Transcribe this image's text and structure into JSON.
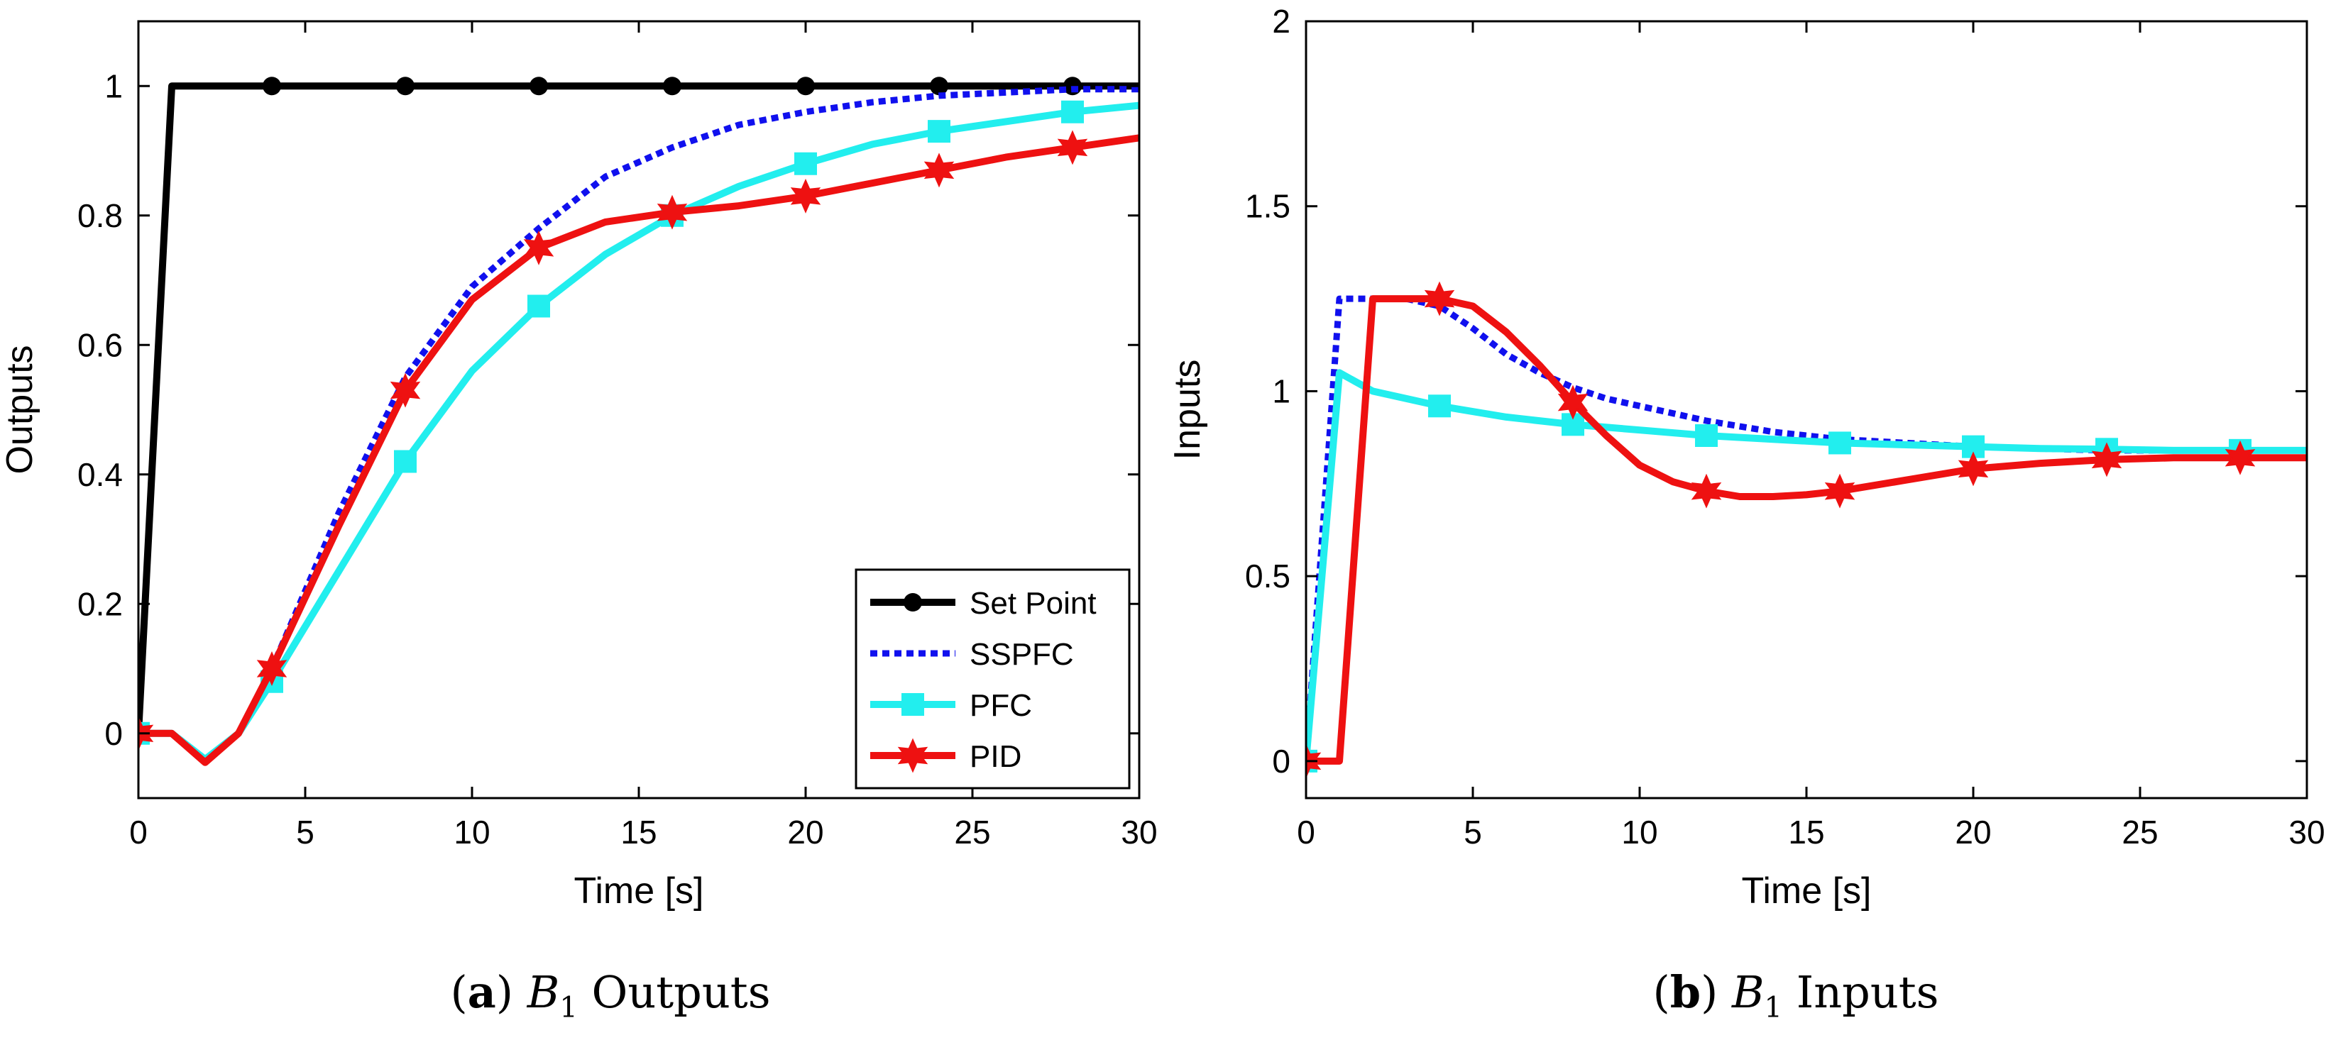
{
  "figure": {
    "captions": [
      {
        "label": "a",
        "symbol": "B",
        "subscript": "1",
        "text": "Outputs"
      },
      {
        "label": "b",
        "symbol": "B",
        "subscript": "1",
        "text": "Inputs"
      }
    ]
  },
  "chart_data": [
    {
      "type": "line",
      "xlabel": "Time [s]",
      "ylabel": "Outputs",
      "xlim": [
        0,
        30
      ],
      "ylim": [
        -0.1,
        1.1
      ],
      "xticks": [
        0,
        5,
        10,
        15,
        20,
        25,
        30
      ],
      "yticks": [
        0,
        0.2,
        0.4,
        0.6,
        0.8,
        1
      ],
      "ytick_labels": [
        "0",
        "0.2",
        "0.4",
        "0.6",
        "0.8",
        "1"
      ],
      "grid": false,
      "legend_position": "bottom-right",
      "series": [
        {
          "name": "Set Point",
          "color": "#000000",
          "style": "solid",
          "marker": "circle",
          "x": [
            0,
            1,
            4,
            8,
            12,
            16,
            20,
            24,
            28,
            30
          ],
          "y": [
            0,
            1,
            1,
            1,
            1,
            1,
            1,
            1,
            1,
            1
          ],
          "marker_x": [
            4,
            8,
            12,
            16,
            20,
            24,
            28
          ]
        },
        {
          "name": "SSPFC",
          "color": "#1010ee",
          "style": "dotted",
          "marker": "none",
          "x": [
            0,
            1,
            2,
            3,
            4,
            6,
            8,
            10,
            12,
            14,
            16,
            18,
            20,
            22,
            24,
            26,
            28,
            30
          ],
          "y": [
            0,
            0,
            -0.045,
            0.0,
            0.1,
            0.34,
            0.55,
            0.69,
            0.78,
            0.86,
            0.905,
            0.94,
            0.96,
            0.975,
            0.985,
            0.99,
            0.995,
            0.995
          ]
        },
        {
          "name": "PFC",
          "color": "#22eeee",
          "style": "solid",
          "marker": "square",
          "x": [
            0,
            1,
            2,
            3,
            4,
            6,
            8,
            10,
            12,
            14,
            16,
            18,
            20,
            22,
            24,
            26,
            28,
            30
          ],
          "y": [
            0,
            0,
            -0.04,
            0.0,
            0.08,
            0.25,
            0.42,
            0.56,
            0.66,
            0.74,
            0.8,
            0.845,
            0.88,
            0.91,
            0.93,
            0.945,
            0.96,
            0.97
          ],
          "marker_x": [
            0,
            4,
            8,
            12,
            16,
            20,
            24,
            28
          ]
        },
        {
          "name": "PID",
          "color": "#ee1111",
          "style": "solid",
          "marker": "star",
          "x": [
            0,
            1,
            2,
            3,
            4,
            6,
            8,
            10,
            12,
            14,
            16,
            18,
            20,
            22,
            24,
            26,
            28,
            30
          ],
          "y": [
            0,
            0,
            -0.045,
            0.0,
            0.1,
            0.32,
            0.53,
            0.67,
            0.75,
            0.79,
            0.805,
            0.815,
            0.83,
            0.85,
            0.87,
            0.89,
            0.905,
            0.92
          ],
          "marker_x": [
            0,
            4,
            8,
            12,
            16,
            20,
            24,
            28
          ]
        }
      ]
    },
    {
      "type": "line",
      "xlabel": "Time [s]",
      "ylabel": "Inputs",
      "xlim": [
        0,
        30
      ],
      "ylim": [
        -0.1,
        2
      ],
      "xticks": [
        0,
        5,
        10,
        15,
        20,
        25,
        30
      ],
      "yticks": [
        0,
        0.5,
        1,
        1.5,
        2
      ],
      "ytick_labels": [
        "0",
        "0.5",
        "1",
        "1.5",
        "2"
      ],
      "grid": false,
      "series": [
        {
          "name": "SSPFC",
          "color": "#1010ee",
          "style": "dotted",
          "marker": "none",
          "x": [
            0,
            1,
            2,
            3,
            4,
            5,
            6,
            7,
            8,
            9,
            10,
            12,
            14,
            16,
            18,
            20,
            22,
            24,
            26,
            28,
            30
          ],
          "y": [
            0,
            1.25,
            1.25,
            1.25,
            1.23,
            1.17,
            1.1,
            1.05,
            1.01,
            0.98,
            0.96,
            0.92,
            0.89,
            0.87,
            0.86,
            0.85,
            0.845,
            0.84,
            0.84,
            0.84,
            0.84
          ]
        },
        {
          "name": "PFC",
          "color": "#22eeee",
          "style": "solid",
          "marker": "square",
          "x": [
            0,
            1,
            2,
            4,
            6,
            8,
            10,
            12,
            14,
            16,
            18,
            20,
            22,
            24,
            26,
            28,
            30
          ],
          "y": [
            0,
            1.05,
            1.0,
            0.96,
            0.93,
            0.91,
            0.895,
            0.88,
            0.87,
            0.86,
            0.855,
            0.85,
            0.845,
            0.843,
            0.84,
            0.84,
            0.84
          ],
          "marker_x": [
            0,
            4,
            8,
            12,
            16,
            20,
            24,
            28
          ]
        },
        {
          "name": "PID",
          "color": "#ee1111",
          "style": "solid",
          "marker": "star",
          "x": [
            0,
            1,
            2,
            3,
            4,
            5,
            6,
            7,
            8,
            9,
            10,
            11,
            12,
            13,
            14,
            15,
            16,
            18,
            20,
            22,
            24,
            26,
            28,
            30
          ],
          "y": [
            0,
            0,
            1.25,
            1.25,
            1.25,
            1.23,
            1.16,
            1.07,
            0.97,
            0.88,
            0.8,
            0.755,
            0.73,
            0.715,
            0.715,
            0.72,
            0.73,
            0.76,
            0.79,
            0.805,
            0.815,
            0.82,
            0.82,
            0.82
          ],
          "marker_x": [
            0,
            4,
            8,
            12,
            16,
            20,
            24,
            28
          ]
        }
      ]
    }
  ]
}
